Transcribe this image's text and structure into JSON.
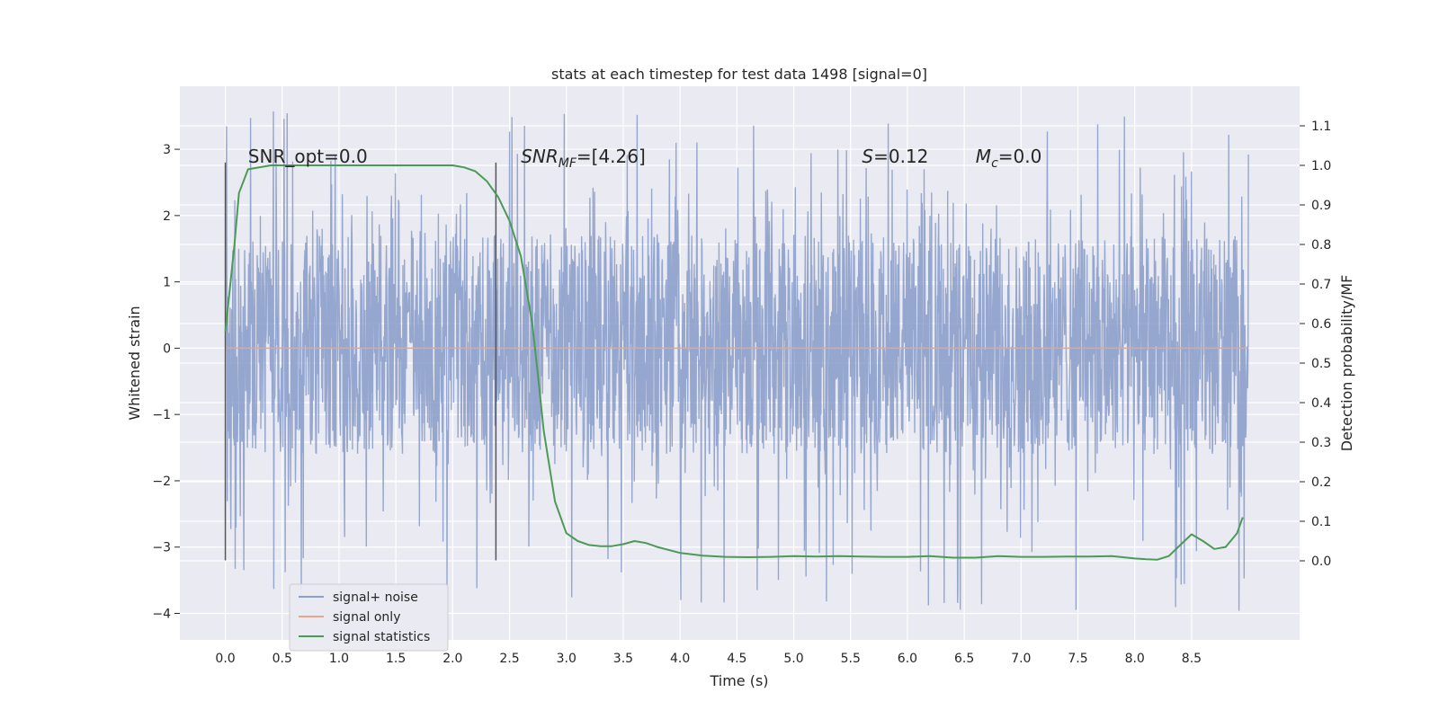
{
  "chart_data": {
    "type": "line",
    "title": "stats at each timestep for test data 1498 [signal=0]",
    "xlabel": "Time (s)",
    "ylabel": "Whitened strain",
    "ylabel_right": "Detection probability/MF",
    "xlim": [
      -0.4,
      9.45
    ],
    "ylim": [
      -4.4,
      3.95
    ],
    "ylim_right": [
      -0.2,
      1.2
    ],
    "x_ticks": [
      0.0,
      0.5,
      1.0,
      1.5,
      2.0,
      2.5,
      3.0,
      3.5,
      4.0,
      4.5,
      5.0,
      5.5,
      6.0,
      6.5,
      7.0,
      7.5,
      8.0,
      8.5
    ],
    "x_tick_labels": [
      "0.0",
      "0.5",
      "1.0",
      "1.5",
      "2.0",
      "2.5",
      "3.0",
      "3.5",
      "4.0",
      "4.5",
      "5.0",
      "5.5",
      "6.0",
      "6.5",
      "7.0",
      "7.5",
      "8.0",
      "8.5"
    ],
    "y_ticks": [
      -4,
      -3,
      -2,
      -1,
      0,
      1,
      2,
      3
    ],
    "y_tick_labels": [
      "−4",
      "−3",
      "−2",
      "−1",
      "0",
      "1",
      "2",
      "3"
    ],
    "y_right_ticks": [
      0.0,
      0.1,
      0.2,
      0.3,
      0.4,
      0.5,
      0.6,
      0.7,
      0.8,
      0.9,
      1.0,
      1.1
    ],
    "y_right_tick_labels": [
      "0.0",
      "0.1",
      "0.2",
      "0.3",
      "0.4",
      "0.5",
      "0.6",
      "0.7",
      "0.8",
      "0.9",
      "1.0",
      "1.1"
    ],
    "grid": true,
    "legend_position": "lower-left",
    "series": [
      {
        "name": "signal+ noise",
        "axis": "left",
        "color": "#8da0cb",
        "style": "dense noise trace",
        "x_range": [
          0.0,
          9.0
        ],
        "y_range": [
          -4.0,
          3.6
        ],
        "typical_band": [
          -1.6,
          1.7
        ]
      },
      {
        "name": "signal only",
        "axis": "left",
        "color": "#e8a58c",
        "x": [
          0.0,
          9.0
        ],
        "values": [
          0.0,
          0.0
        ]
      },
      {
        "name": "signal statistics",
        "axis": "right",
        "color": "#4c9a57",
        "x": [
          0.0,
          0.08,
          0.12,
          0.2,
          0.4,
          1.0,
          1.5,
          2.0,
          2.1,
          2.2,
          2.3,
          2.4,
          2.5,
          2.6,
          2.7,
          2.75,
          2.8,
          2.9,
          3.0,
          3.1,
          3.2,
          3.3,
          3.4,
          3.5,
          3.6,
          3.7,
          3.8,
          4.0,
          4.2,
          4.4,
          4.6,
          4.8,
          5.0,
          5.2,
          5.4,
          5.6,
          5.8,
          6.0,
          6.2,
          6.4,
          6.6,
          6.8,
          7.0,
          7.2,
          7.4,
          7.6,
          7.8,
          8.0,
          8.1,
          8.2,
          8.3,
          8.4,
          8.5,
          8.6,
          8.7,
          8.8,
          8.9,
          8.95
        ],
        "values": [
          0.58,
          0.8,
          0.93,
          0.99,
          1.0,
          1.0,
          1.0,
          1.0,
          0.995,
          0.985,
          0.96,
          0.92,
          0.86,
          0.77,
          0.6,
          0.47,
          0.33,
          0.15,
          0.07,
          0.05,
          0.04,
          0.037,
          0.037,
          0.042,
          0.05,
          0.045,
          0.035,
          0.02,
          0.013,
          0.01,
          0.009,
          0.01,
          0.012,
          0.011,
          0.012,
          0.011,
          0.01,
          0.01,
          0.012,
          0.008,
          0.008,
          0.012,
          0.01,
          0.01,
          0.011,
          0.011,
          0.012,
          0.006,
          0.004,
          0.003,
          0.012,
          0.04,
          0.067,
          0.05,
          0.03,
          0.035,
          0.07,
          0.11
        ]
      }
    ],
    "vertical_markers": [
      {
        "x": 0.0,
        "y_range": [
          -3.2,
          2.8
        ],
        "color": "#555555"
      },
      {
        "x": 2.38,
        "y_range": [
          -3.2,
          2.8
        ],
        "color": "#555555"
      }
    ],
    "annotations": [
      {
        "id": "snr-opt",
        "text": "SNR_opt=0.0",
        "x": 0.2,
        "y": 2.8
      },
      {
        "id": "snr-mf",
        "text": "=[4.26]",
        "x": 2.6,
        "y": 2.8
      },
      {
        "id": "s-stat",
        "text": "=0.12",
        "x": 5.6,
        "y": 2.8
      },
      {
        "id": "mc-stat",
        "text": "=0.0",
        "x": 6.6,
        "y": 2.8
      }
    ]
  }
}
